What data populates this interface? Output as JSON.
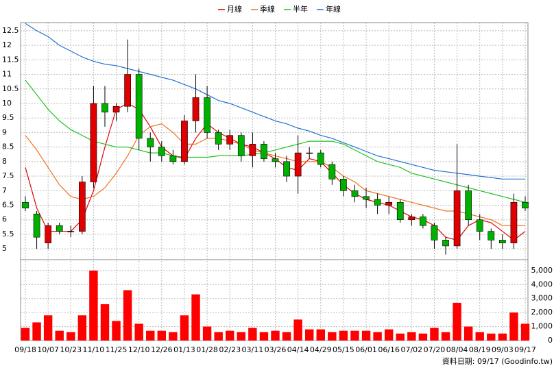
{
  "chart_data": {
    "type": "candlestick",
    "categories": [
      "09/18",
      null,
      "10/07",
      null,
      "10/23",
      null,
      "11/10",
      null,
      "11/25",
      null,
      "12/10",
      null,
      "12/26",
      null,
      "01/13",
      null,
      "01/28",
      null,
      "02/23",
      null,
      "03/11",
      null,
      "03/26",
      null,
      "04/14",
      null,
      "04/29",
      null,
      "05/15",
      null,
      "06/01",
      null,
      "06/16",
      null,
      "07/02",
      null,
      "07/20",
      null,
      "08/04",
      null,
      "08/19",
      null,
      "09/03",
      null,
      "09/17"
    ],
    "open": [
      6.6,
      6.2,
      5.2,
      5.8,
      5.6,
      5.6,
      7.3,
      10.0,
      9.7,
      9.9,
      11.0,
      8.8,
      8.5,
      8.2,
      8.0,
      9.4,
      10.2,
      9.0,
      8.6,
      8.9,
      8.2,
      8.6,
      8.1,
      8.0,
      7.5,
      8.3,
      8.3,
      7.9,
      7.4,
      7.0,
      6.8,
      6.7,
      6.5,
      6.6,
      6.0,
      6.1,
      5.8,
      5.3,
      5.1,
      7.0,
      6.0,
      5.6,
      5.3,
      5.2,
      6.6
    ],
    "high": [
      6.8,
      6.3,
      5.9,
      5.9,
      5.8,
      7.5,
      10.6,
      10.6,
      10.0,
      12.2,
      11.2,
      9.0,
      8.7,
      8.4,
      9.6,
      11.0,
      10.6,
      9.1,
      9.1,
      9.0,
      9.0,
      8.7,
      8.3,
      8.2,
      8.9,
      8.5,
      8.4,
      8.0,
      7.5,
      7.2,
      7.1,
      6.9,
      6.8,
      6.7,
      6.2,
      6.2,
      5.9,
      5.4,
      8.6,
      7.2,
      6.2,
      5.7,
      5.5,
      6.9,
      6.8
    ],
    "low": [
      6.3,
      5.0,
      5.0,
      5.5,
      5.4,
      5.5,
      7.1,
      9.2,
      9.4,
      9.7,
      8.4,
      8.0,
      8.0,
      7.9,
      7.9,
      9.0,
      8.8,
      8.4,
      8.4,
      8.0,
      7.8,
      8.0,
      7.8,
      7.3,
      6.9,
      8.1,
      7.8,
      7.2,
      6.8,
      6.6,
      6.4,
      6.2,
      6.2,
      5.9,
      5.8,
      5.7,
      5.0,
      4.8,
      5.0,
      5.8,
      5.3,
      5.0,
      5.0,
      5.0,
      6.3
    ],
    "close": [
      6.4,
      5.4,
      5.8,
      5.6,
      5.6,
      7.3,
      10.0,
      9.7,
      9.9,
      11.0,
      8.8,
      8.5,
      8.2,
      8.0,
      9.4,
      10.2,
      9.0,
      8.6,
      8.9,
      8.2,
      8.6,
      8.1,
      8.0,
      7.5,
      8.3,
      8.3,
      7.9,
      7.4,
      7.0,
      6.8,
      6.7,
      6.5,
      6.6,
      6.0,
      6.1,
      5.8,
      5.3,
      5.1,
      7.0,
      6.0,
      5.6,
      5.3,
      5.2,
      6.6,
      6.4
    ],
    "up_color": "#e00000",
    "down_color": "#00b000",
    "ylim": [
      4.65,
      12.78
    ],
    "yticks": [
      5,
      5.5,
      6,
      6.5,
      7,
      7.5,
      8,
      8.5,
      9,
      9.5,
      10,
      10.5,
      11,
      11.5,
      12,
      12.5
    ],
    "grid": true,
    "series": [
      {
        "name": "月線",
        "color": "#e00000",
        "values": [
          7.8,
          6.4,
          5.6,
          5.6,
          5.6,
          6.0,
          7.0,
          8.5,
          9.8,
          10.0,
          9.8,
          9.2,
          8.5,
          8.2,
          8.1,
          8.8,
          9.3,
          9.0,
          8.8,
          8.6,
          8.5,
          8.3,
          8.1,
          7.8,
          7.7,
          8.1,
          8.0,
          7.6,
          7.2,
          6.9,
          6.7,
          6.6,
          6.5,
          6.3,
          6.1,
          6.0,
          5.8,
          5.4,
          5.3,
          5.8,
          6.0,
          5.9,
          5.6,
          5.3,
          5.6
        ]
      },
      {
        "name": "季線",
        "color": "#f07020",
        "values": [
          8.9,
          8.4,
          7.8,
          7.2,
          6.8,
          6.7,
          6.8,
          7.1,
          7.6,
          8.2,
          8.9,
          9.2,
          9.3,
          9.0,
          8.6,
          8.6,
          8.8,
          8.8,
          8.7,
          8.6,
          8.4,
          8.3,
          8.2,
          8.1,
          8.0,
          8.0,
          8.0,
          7.8,
          7.5,
          7.3,
          7.0,
          6.9,
          6.8,
          6.7,
          6.6,
          6.5,
          6.4,
          6.3,
          6.3,
          6.2,
          6.1,
          6.0,
          5.8,
          5.8,
          5.8
        ]
      },
      {
        "name": "半年",
        "color": "#20c020",
        "values": [
          10.8,
          10.3,
          9.8,
          9.4,
          9.1,
          8.9,
          8.7,
          8.6,
          8.5,
          8.5,
          8.4,
          8.3,
          8.3,
          8.2,
          8.15,
          8.15,
          8.15,
          8.2,
          8.2,
          8.2,
          8.25,
          8.3,
          8.4,
          8.5,
          8.6,
          8.7,
          8.7,
          8.7,
          8.6,
          8.4,
          8.2,
          8.0,
          7.9,
          7.8,
          7.6,
          7.5,
          7.4,
          7.3,
          7.2,
          7.1,
          7.0,
          6.9,
          6.8,
          6.7,
          6.6
        ]
      },
      {
        "name": "年線",
        "color": "#2070d0",
        "values": [
          12.75,
          12.5,
          12.3,
          12.0,
          11.8,
          11.6,
          11.45,
          11.35,
          11.3,
          11.2,
          11.1,
          11.0,
          10.9,
          10.8,
          10.65,
          10.5,
          10.3,
          10.1,
          10.0,
          9.85,
          9.7,
          9.55,
          9.4,
          9.3,
          9.15,
          9.05,
          8.9,
          8.8,
          8.65,
          8.5,
          8.35,
          8.2,
          8.1,
          8.0,
          7.9,
          7.8,
          7.7,
          7.65,
          7.6,
          7.55,
          7.5,
          7.45,
          7.4,
          7.4,
          7.4
        ]
      }
    ],
    "volume": {
      "color": "#ff0000",
      "values": [
        900,
        1300,
        1800,
        700,
        600,
        1800,
        5000,
        2600,
        1400,
        3600,
        1200,
        700,
        700,
        600,
        1800,
        3300,
        1000,
        600,
        700,
        600,
        900,
        600,
        700,
        600,
        1500,
        800,
        800,
        600,
        700,
        700,
        700,
        600,
        800,
        500,
        600,
        500,
        900,
        600,
        2700,
        1000,
        600,
        500,
        500,
        2000,
        1200
      ],
      "ylim": [
        0,
        5730
      ],
      "yticks": [
        0,
        {
          "value": 1000,
          "label": "1,000"
        },
        {
          "value": 2000,
          "label": "2,000"
        },
        {
          "value": 3000,
          "label": "3,000"
        },
        {
          "value": 4000,
          "label": "4,000"
        },
        {
          "value": 5000,
          "label": "5,000"
        }
      ]
    },
    "note": "資料日期: 09/17 (Goodinfo.tw)"
  }
}
